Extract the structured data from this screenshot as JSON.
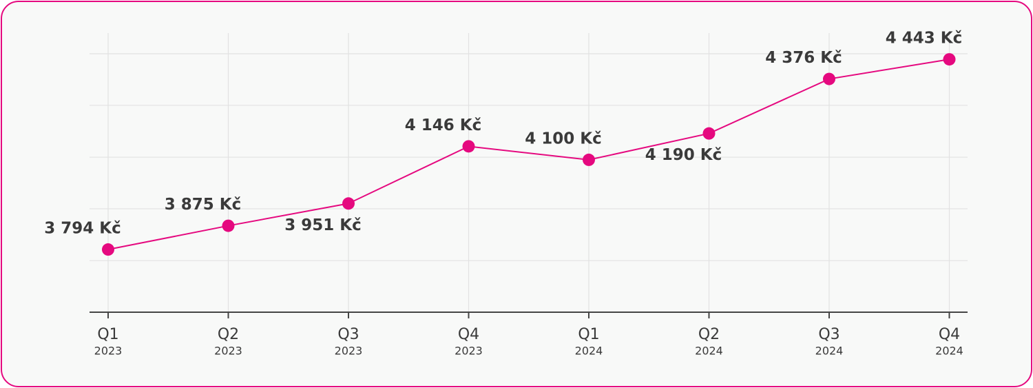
{
  "chart_data": {
    "type": "line",
    "categories": [
      [
        "Q1",
        "2023"
      ],
      [
        "Q2",
        "2023"
      ],
      [
        "Q3",
        "2023"
      ],
      [
        "Q4",
        "2023"
      ],
      [
        "Q1",
        "2024"
      ],
      [
        "Q2",
        "2024"
      ],
      [
        "Q3",
        "2024"
      ],
      [
        "Q4",
        "2024"
      ]
    ],
    "values": [
      3794,
      3875,
      3951,
      4146,
      4100,
      4190,
      4376,
      4443
    ],
    "value_labels": [
      "3 794 Kč",
      "3 875 Kč",
      "3 951 Kč",
      "4 146 Kč",
      "4 100 Kč",
      "4 190 Kč",
      "4 376 Kč",
      "4 443 Kč"
    ],
    "color": "#e5097f",
    "ylim": [
      3580,
      4462
    ],
    "yticks": [
      3580,
      3756,
      3933,
      4109,
      4286,
      4462
    ],
    "grid": true
  }
}
